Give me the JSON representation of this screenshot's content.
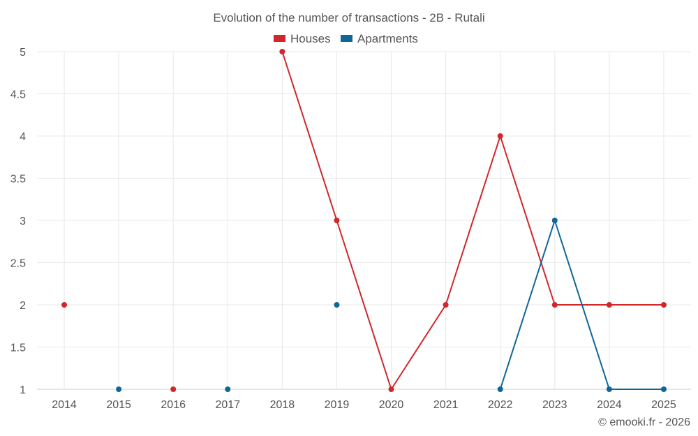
{
  "chart_data": {
    "type": "line",
    "title": "Evolution of the number of transactions - 2B - Rutali",
    "categories": [
      "2014",
      "2015",
      "2016",
      "2017",
      "2018",
      "2019",
      "2020",
      "2021",
      "2022",
      "2023",
      "2024",
      "2025"
    ],
    "ylim": [
      1,
      5
    ],
    "yticks": [
      "1",
      "1.5",
      "2",
      "2.5",
      "3",
      "3.5",
      "4",
      "4.5",
      "5"
    ],
    "grid": true,
    "legend_position": "top-center",
    "series": [
      {
        "name": "Houses",
        "color": "#d0272a",
        "values": [
          2,
          null,
          1,
          null,
          5,
          3,
          1,
          2,
          4,
          2,
          2,
          2
        ]
      },
      {
        "name": "Apartments",
        "color": "#0f6699",
        "values": [
          null,
          1,
          null,
          1,
          null,
          2,
          null,
          null,
          1,
          3,
          1,
          1
        ]
      }
    ],
    "credit": "© emooki.fr - 2026"
  }
}
